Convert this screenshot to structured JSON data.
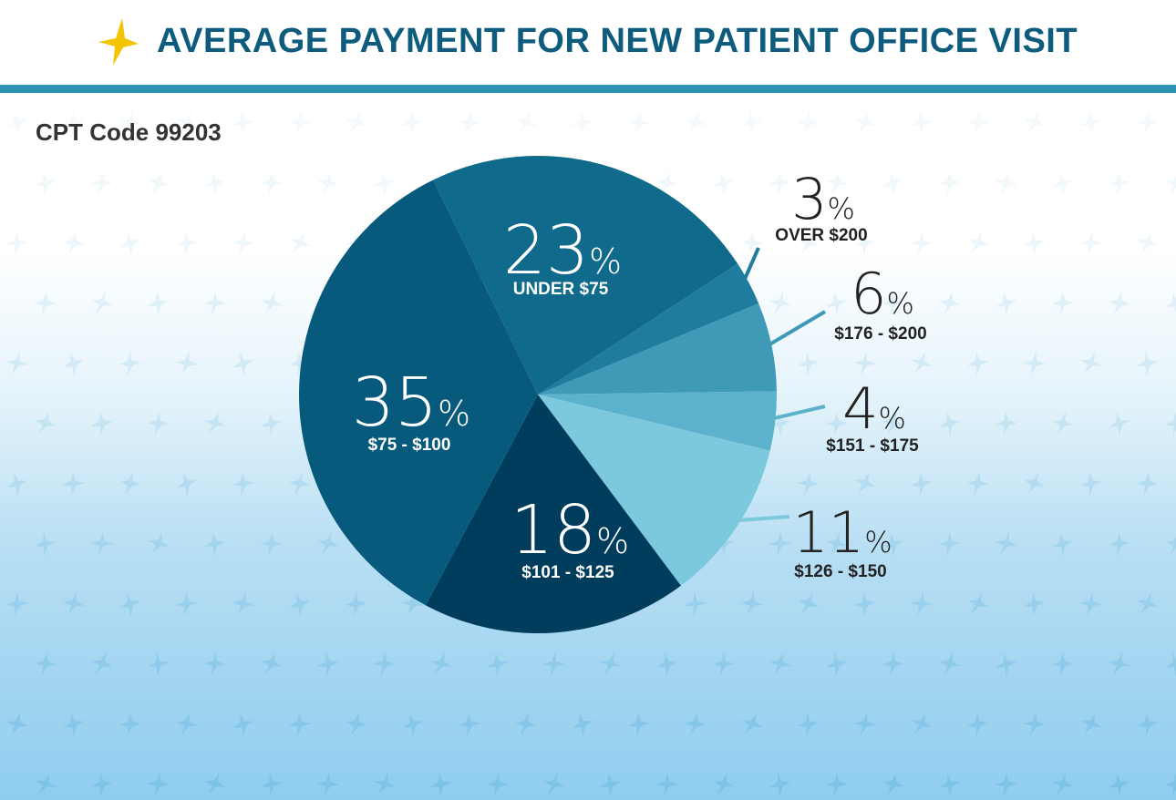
{
  "header": {
    "title": "AVERAGE PAYMENT FOR NEW PATIENT OFFICE VISIT"
  },
  "colors": {
    "title": "#0d5b7d",
    "rule": "#2f94b3",
    "star": "#f5c400"
  },
  "icons": {
    "logo": "star-logo-icon"
  },
  "chart_data": {
    "type": "pie",
    "title": "",
    "subtitle": "CPT Code 99203",
    "slices": [
      {
        "label": "UNDER $75",
        "value": 23,
        "pct_text": "23",
        "color": "#106a8c"
      },
      {
        "label": "OVER $200",
        "value": 3,
        "pct_text": "3",
        "color": "#1f7c9c"
      },
      {
        "label": "$176 - $200",
        "value": 6,
        "pct_text": "6",
        "color": "#3f9ab8"
      },
      {
        "label": "$151 - $175",
        "value": 4,
        "pct_text": "4",
        "color": "#5cb2cc"
      },
      {
        "label": "$126 - $150",
        "value": 11,
        "pct_text": "11",
        "color": "#7cc8dd"
      },
      {
        "label": "$101 - $125",
        "value": 18,
        "pct_text": "18",
        "color": "#003c5c"
      },
      {
        "label": "$75 - $100",
        "value": 35,
        "pct_text": "35",
        "color": "#085a7c"
      }
    ],
    "percent_symbol": "%"
  }
}
